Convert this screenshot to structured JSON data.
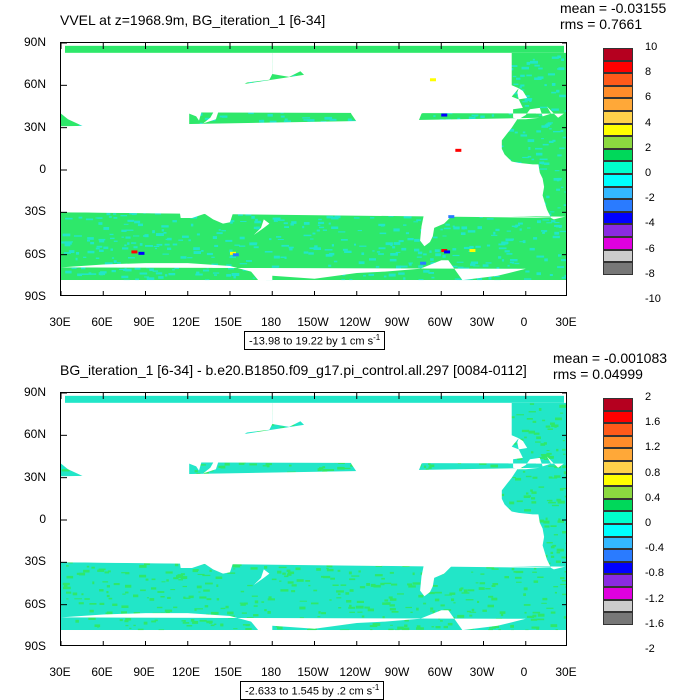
{
  "panels": [
    {
      "title": "VVEL at z=1968.9m, BG_iteration_1 [6-34]",
      "mean": "mean = -0.03155",
      "rms": "rms = 0.7661",
      "range_text": "-13.98 to 19.22 by 1 cm s",
      "range_unit_sup": "-1",
      "y_labels": [
        "90N",
        "60N",
        "30N",
        "0",
        "30S",
        "60S",
        "90S"
      ],
      "x_labels": [
        "30E",
        "60E",
        "90E",
        "120E",
        "150E",
        "180",
        "150W",
        "120W",
        "90W",
        "60W",
        "30W",
        "0",
        "30E"
      ],
      "colorbar_labels": [
        "10",
        "8",
        "6",
        "4",
        "2",
        "0",
        "-2",
        "-4",
        "-6",
        "-8",
        "-10"
      ]
    },
    {
      "title": "BG_iteration_1 [6-34] - b.e20.B1850.f09_g17.pi_control.all.297 [0084-0112]",
      "mean": "mean = -0.001083",
      "rms": "rms = 0.04999",
      "range_text": "-2.633 to 1.545 by .2 cm s",
      "range_unit_sup": "-1",
      "y_labels": [
        "90N",
        "60N",
        "30N",
        "0",
        "30S",
        "60S",
        "90S"
      ],
      "x_labels": [
        "30E",
        "60E",
        "90E",
        "120E",
        "150E",
        "180",
        "150W",
        "120W",
        "90W",
        "60W",
        "30W",
        "0",
        "30E"
      ],
      "colorbar_labels": [
        "2",
        "1.6",
        "1.2",
        "0.8",
        "0.4",
        "0",
        "-0.4",
        "-0.8",
        "-1.2",
        "-1.6",
        "-2"
      ]
    }
  ],
  "colorbar_colors": [
    "#b5001f",
    "#ff0000",
    "#ff5a1a",
    "#ff8c2a",
    "#ffa838",
    "#ffd24a",
    "#ffff00",
    "#8cd93f",
    "#00d85a",
    "#00ffcc",
    "#00ffff",
    "#33b8ff",
    "#2a7bff",
    "#0000ff",
    "#8a2be2",
    "#e000e0",
    "#cccccc",
    "#777777"
  ],
  "colors": {
    "ocean": "#2ee86a",
    "ocean_alt": "#22e6c8",
    "land": "#ffffff"
  }
}
